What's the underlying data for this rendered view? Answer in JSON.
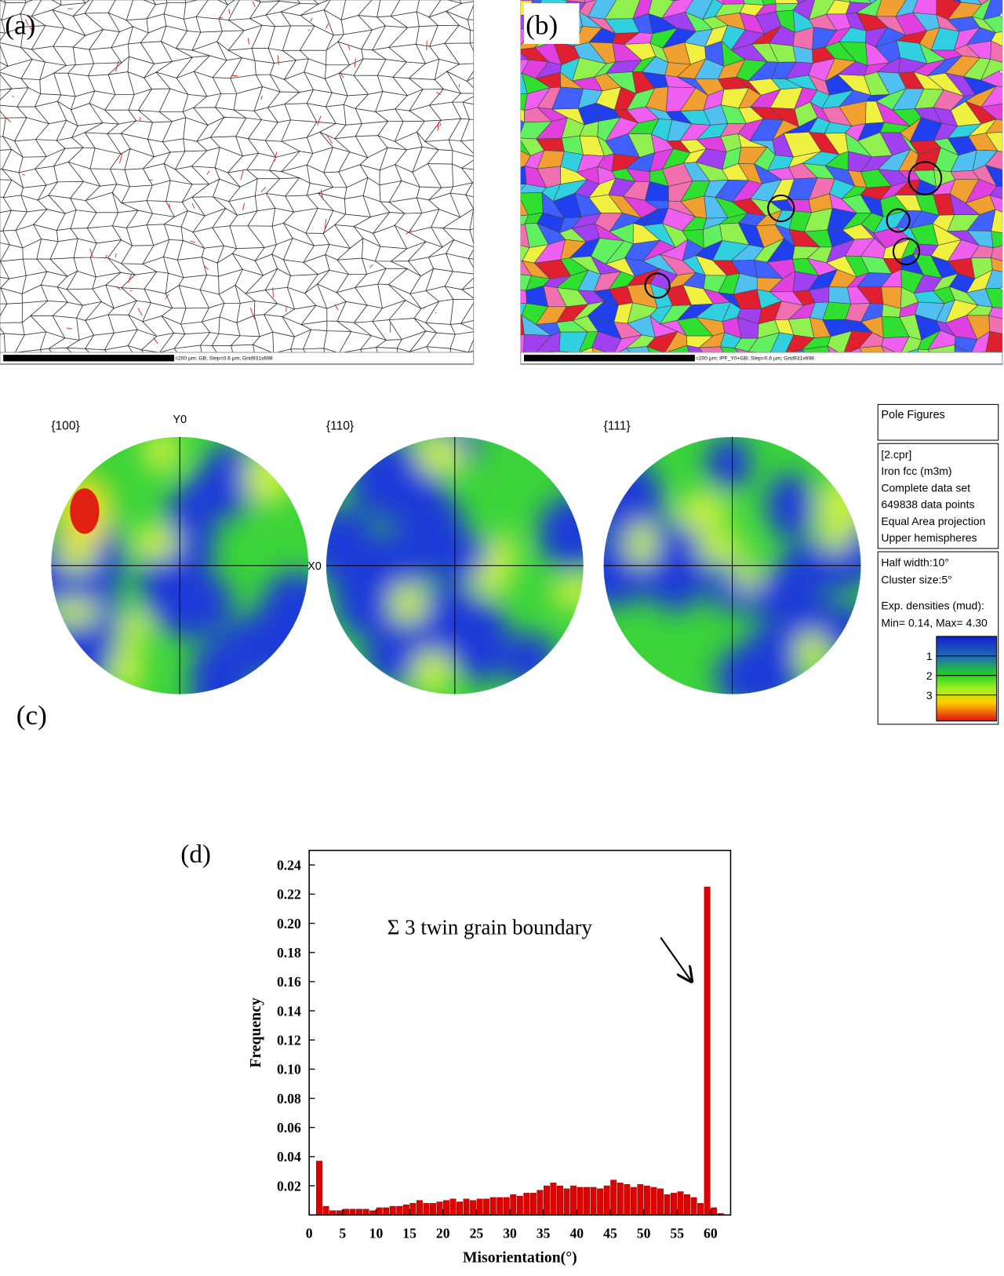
{
  "panels": {
    "a": {
      "label": "(a)",
      "scale_bar": "=200 µm; GB; Step=0.6 µm; Grid931x698"
    },
    "b": {
      "label": "(b)",
      "scale_bar": "=200 µm; IPF_Y0+GB; Step=0.6 µm; Grid931x698"
    },
    "c": {
      "label": "(c)",
      "pole_figures": [
        {
          "label": "{100}"
        },
        {
          "label": "{110}"
        },
        {
          "label": "{111}"
        }
      ],
      "axis_labels": {
        "y": "Y0",
        "x": "X0"
      },
      "info": {
        "title": "Pole Figures",
        "details": [
          "[2.cpr]",
          "Iron fcc (m3m)",
          "Complete data set",
          "649838 data points",
          "Equal Area projection",
          "Upper hemispheres"
        ],
        "settings": [
          "Half width:10°",
          "Cluster size:5°",
          "Exp. densities (mud):",
          "Min= 0.14, Max= 4.30"
        ],
        "colorbar_ticks": [
          1,
          2,
          3
        ]
      }
    }
  },
  "chart_data": {
    "type": "histogram",
    "label": "(d)",
    "bins": [
      1,
      2,
      3,
      4,
      5,
      6,
      7,
      8,
      9,
      10,
      11,
      12,
      13,
      14,
      15,
      16,
      17,
      18,
      19,
      20,
      21,
      22,
      23,
      24,
      25,
      26,
      27,
      28,
      29,
      30,
      31,
      32,
      33,
      34,
      35,
      36,
      37,
      38,
      39,
      40,
      41,
      42,
      43,
      44,
      45,
      46,
      47,
      48,
      49,
      50,
      51,
      52,
      53,
      54,
      55,
      56,
      57,
      58,
      59,
      60,
      61,
      62
    ],
    "values": [
      0.037,
      0.006,
      0.003,
      0.003,
      0.004,
      0.004,
      0.004,
      0.004,
      0.003,
      0.005,
      0.005,
      0.006,
      0.006,
      0.007,
      0.008,
      0.01,
      0.008,
      0.008,
      0.009,
      0.01,
      0.011,
      0.009,
      0.011,
      0.01,
      0.011,
      0.011,
      0.012,
      0.012,
      0.012,
      0.014,
      0.013,
      0.015,
      0.015,
      0.017,
      0.02,
      0.022,
      0.02,
      0.018,
      0.02,
      0.019,
      0.019,
      0.019,
      0.018,
      0.02,
      0.024,
      0.022,
      0.021,
      0.019,
      0.021,
      0.02,
      0.019,
      0.018,
      0.014,
      0.015,
      0.016,
      0.014,
      0.012,
      0.008,
      0.225,
      0.005,
      0.001
    ],
    "color": "#e00000",
    "xlim": [
      0,
      63
    ],
    "ylim": [
      0,
      0.25
    ],
    "xticks": [
      0,
      5,
      10,
      15,
      20,
      25,
      30,
      35,
      40,
      45,
      50,
      55,
      60
    ],
    "yticks": [
      0.02,
      0.04,
      0.06,
      0.08,
      {
        "value": 0.1,
        "label": "0.10"
      },
      0.12,
      0.14,
      0.16,
      0.18,
      {
        "value": 0.2,
        "label": "0.20"
      },
      0.22,
      0.24
    ],
    "xlabel": "Misorientation(°)",
    "ylabel": "Frequency",
    "annotation": "Σ 3 twin grain boundary"
  }
}
